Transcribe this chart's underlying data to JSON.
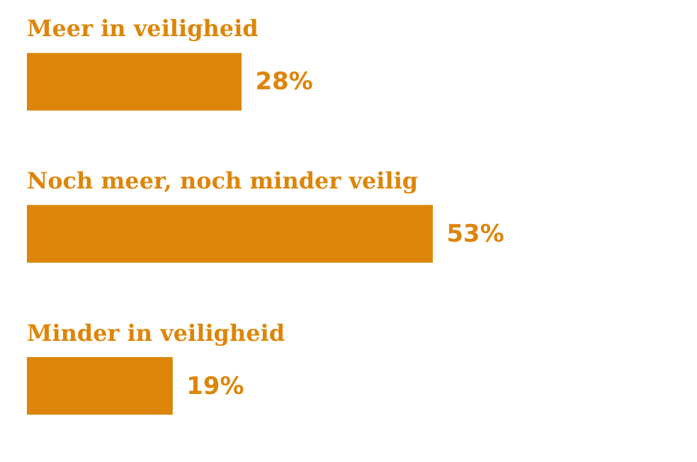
{
  "chart_data": {
    "type": "bar",
    "orientation": "horizontal",
    "tick_labels": "y",
    "categories": [
      "Meer in veiligheid",
      "Noch meer, noch minder veilig",
      "Minder in veiligheid"
    ],
    "values": [
      28,
      53,
      19
    ],
    "value_labels": [
      "28%",
      "53%",
      "19%"
    ],
    "color": "#dd8508"
  }
}
